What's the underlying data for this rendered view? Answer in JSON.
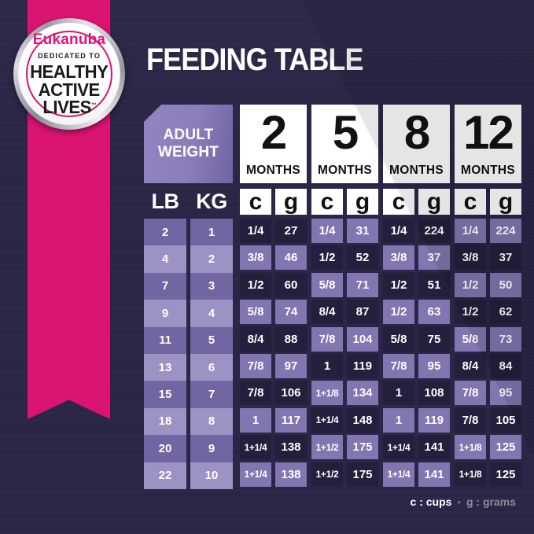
{
  "title": "FEEDING TABLE",
  "badge": {
    "brand": "Eukanuba",
    "dedication": "DEDICATED TO",
    "line1": "HEALTHY",
    "line2": "ACTIVE",
    "line3": "LIVES",
    "trademark": "™"
  },
  "table_header": {
    "corner_line1": "ADULT",
    "corner_line2": "WEIGHT"
  },
  "chart_data": {
    "type": "table",
    "title": "FEEDING TABLE",
    "corner_header": "ADULT WEIGHT",
    "month_columns": [
      {
        "number": "2",
        "unit_label": "MONTHS"
      },
      {
        "number": "5",
        "unit_label": "MONTHS"
      },
      {
        "number": "8",
        "unit_label": "MONTHS"
      },
      {
        "number": "12",
        "unit_label": "MONTHS"
      }
    ],
    "unit_headers": [
      "c",
      "g",
      "c",
      "g",
      "c",
      "g",
      "c",
      "g"
    ],
    "weight_headers": [
      "LB",
      "KG"
    ],
    "rows": [
      {
        "lb": "2",
        "kg": "1",
        "amounts": [
          "1/4",
          "27",
          "1/4",
          "31",
          "1/4",
          "224",
          "1/4",
          "224"
        ]
      },
      {
        "lb": "4",
        "kg": "2",
        "amounts": [
          "3/8",
          "46",
          "1/2",
          "52",
          "3/8",
          "37",
          "3/8",
          "37"
        ]
      },
      {
        "lb": "7",
        "kg": "3",
        "amounts": [
          "1/2",
          "60",
          "5/8",
          "71",
          "1/2",
          "51",
          "1/2",
          "50"
        ]
      },
      {
        "lb": "9",
        "kg": "4",
        "amounts": [
          "5/8",
          "74",
          "8/4",
          "87",
          "1/2",
          "63",
          "1/2",
          "62"
        ]
      },
      {
        "lb": "11",
        "kg": "5",
        "amounts": [
          "8/4",
          "88",
          "7/8",
          "104",
          "5/8",
          "75",
          "5/8",
          "73"
        ]
      },
      {
        "lb": "13",
        "kg": "6",
        "amounts": [
          "7/8",
          "97",
          "1",
          "119",
          "7/8",
          "95",
          "8/4",
          "84"
        ]
      },
      {
        "lb": "15",
        "kg": "7",
        "amounts": [
          "7/8",
          "106",
          "1+1/8",
          "134",
          "1",
          "108",
          "7/8",
          "95"
        ]
      },
      {
        "lb": "18",
        "kg": "8",
        "amounts": [
          "1",
          "117",
          "1+1/4",
          "148",
          "1",
          "119",
          "7/8",
          "105"
        ]
      },
      {
        "lb": "20",
        "kg": "9",
        "amounts": [
          "1+1/4",
          "138",
          "1+1/2",
          "175",
          "1+1/4",
          "141",
          "1+1/8",
          "125"
        ]
      },
      {
        "lb": "22",
        "kg": "10",
        "amounts": [
          "1+1/4",
          "138",
          "1+1/2",
          "175",
          "1+1/4",
          "141",
          "1+1/8",
          "125"
        ]
      }
    ]
  },
  "legend": {
    "cups_label": "c : cups",
    "separator": "•",
    "grams_label": "g : grams"
  },
  "colors": {
    "background": "#2B2546",
    "ribbon_pink": "#DB1472",
    "brand_pink": "#E2127B",
    "cell_dark": "#241F3C",
    "cell_medium_purple": "#8176AF",
    "weight_row_medium": "#7166A2",
    "weight_row_light": "#9C92C4",
    "corner_box_purple": "#8A7DB9",
    "header_white": "#FFFFFF",
    "text_black": "#1A1A1A",
    "legend_gray": "#8C8C98"
  }
}
